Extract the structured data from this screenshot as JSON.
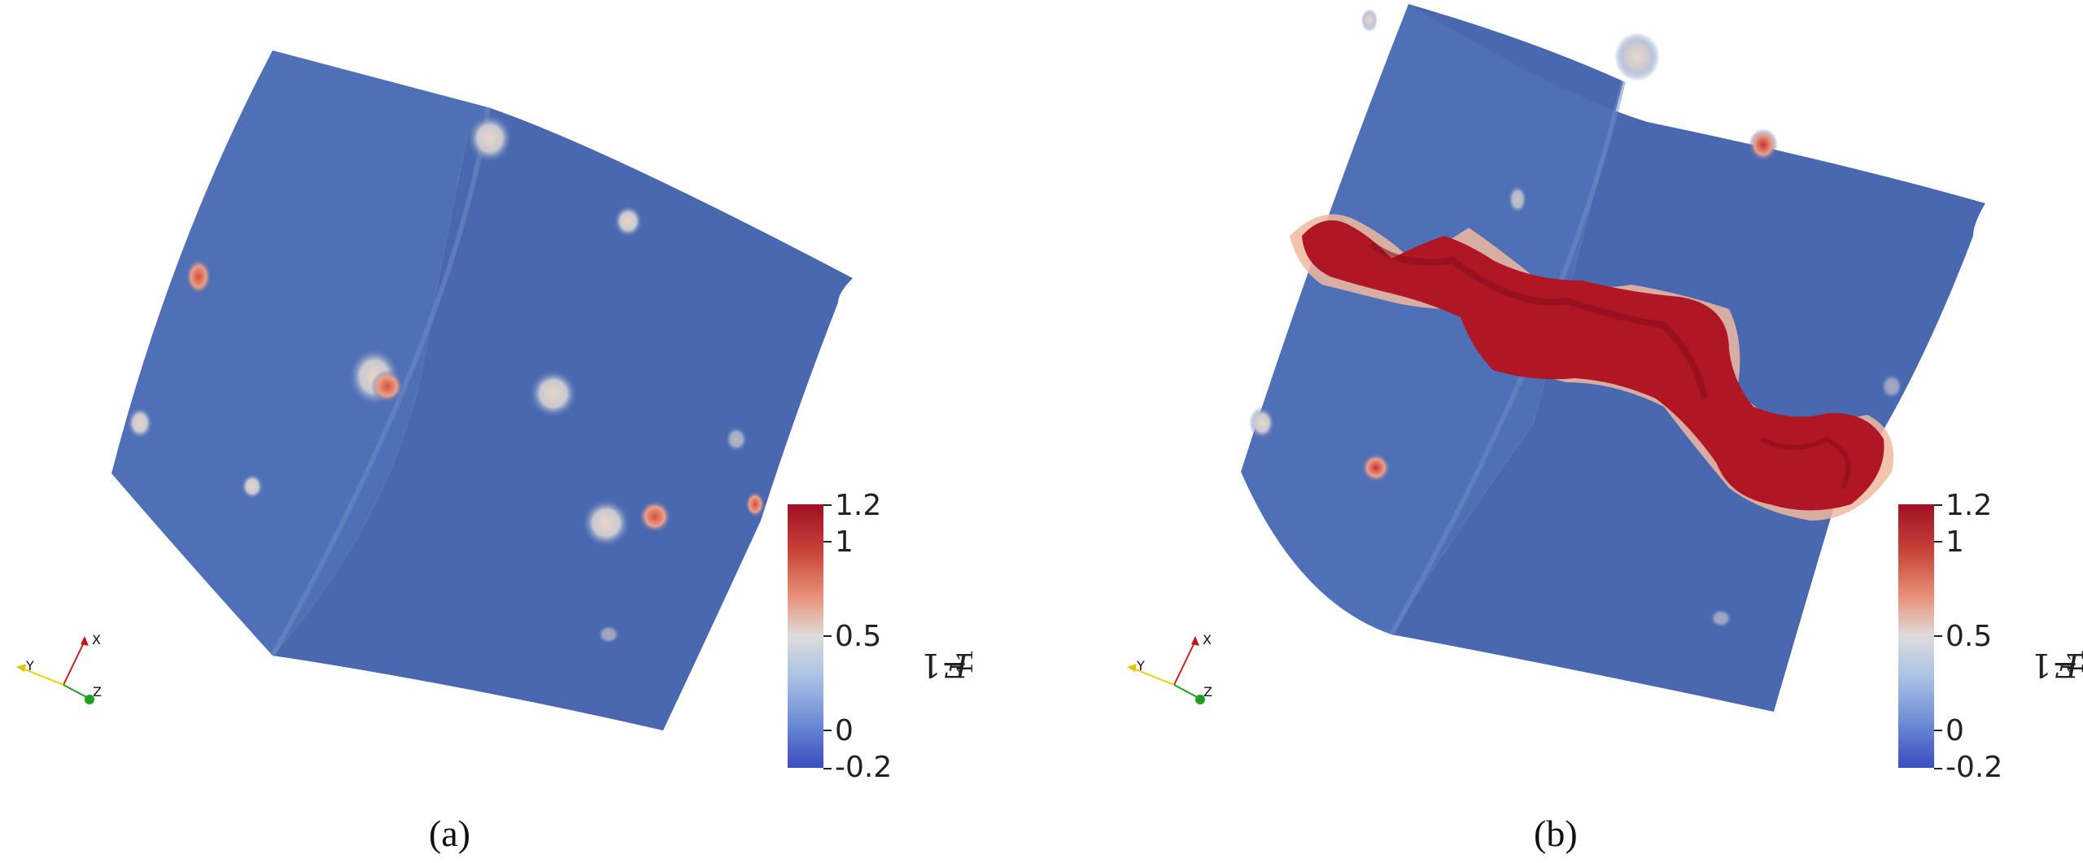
{
  "panels": [
    {
      "caption": "(a)",
      "colorbar": {
        "title": "F11−1",
        "title_main": "F",
        "title_sub": "11",
        "title_rest": "−1",
        "ticks": [
          "1.2",
          "1",
          "0.5",
          "0",
          "-0.2"
        ],
        "range": [
          -0.2,
          1.2
        ],
        "colormap": [
          "#3b4cc0",
          "#dddcdc",
          "#b40426"
        ]
      },
      "axes": {
        "x": "X",
        "y": "Y",
        "z": "Z"
      }
    },
    {
      "caption": "(b)",
      "colorbar": {
        "title": "F11−1",
        "title_main": "F",
        "title_sub": "11",
        "title_rest": "−1",
        "ticks": [
          "1.2",
          "1",
          "0.5",
          "0",
          "-0.2"
        ],
        "range": [
          -0.2,
          1.2
        ],
        "colormap": [
          "#3b4cc0",
          "#dddcdc",
          "#b40426"
        ]
      },
      "axes": {
        "x": "X",
        "y": "Y",
        "z": "Z"
      }
    }
  ],
  "colors": {
    "field_base": "#4a6cb3",
    "high_value": "#b01624",
    "x_axis": "#d01c1c",
    "y_axis": "#e8d000",
    "z_axis": "#1ea01e"
  }
}
